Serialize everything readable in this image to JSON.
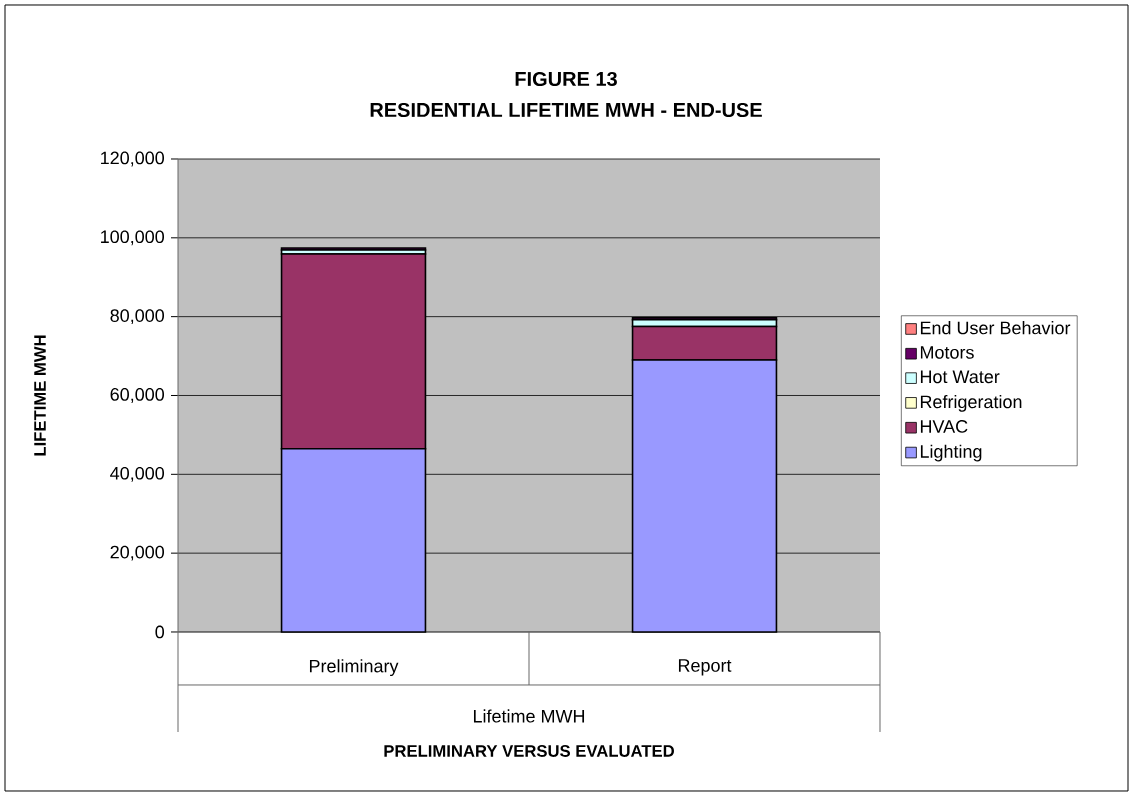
{
  "chart_data": {
    "type": "bar",
    "stacked": true,
    "title": "FIGURE 13",
    "subtitle": "RESIDENTIAL LIFETIME MWH - END-USE",
    "xlabel": "PRELIMINARY VERSUS EVALUATED",
    "ylabel": "LIFETIME MWH",
    "annotations": [
      "Lifetime MWH"
    ],
    "categories": [
      "Preliminary",
      "Report"
    ],
    "series": [
      {
        "name": "Lighting",
        "color": "#9999ff",
        "values": [
          46500,
          69000
        ]
      },
      {
        "name": "HVAC",
        "color": "#993366",
        "values": [
          49400,
          8500
        ]
      },
      {
        "name": "Refrigeration",
        "color": "#ffffcc",
        "values": [
          null,
          null
        ]
      },
      {
        "name": "Hot Water",
        "color": "#ccffff",
        "values": [
          1000,
          1700
        ]
      },
      {
        "name": "Motors",
        "color": "#660066",
        "values": [
          500,
          500
        ]
      },
      {
        "name": "End User Behavior",
        "color": "#ff8080",
        "values": [
          null,
          null
        ]
      }
    ],
    "ylim": [
      0,
      120000
    ],
    "yticks": [
      {
        "value": 0,
        "label": "0"
      },
      {
        "value": 20000,
        "label": "20,000"
      },
      {
        "value": 40000,
        "label": "40,000"
      },
      {
        "value": 60000,
        "label": "60,000"
      },
      {
        "value": 80000,
        "label": "80,000"
      },
      {
        "value": 100000,
        "label": "100,000"
      },
      {
        "value": 120000,
        "label": "120,000"
      }
    ],
    "grid": "y",
    "legend": "right"
  }
}
